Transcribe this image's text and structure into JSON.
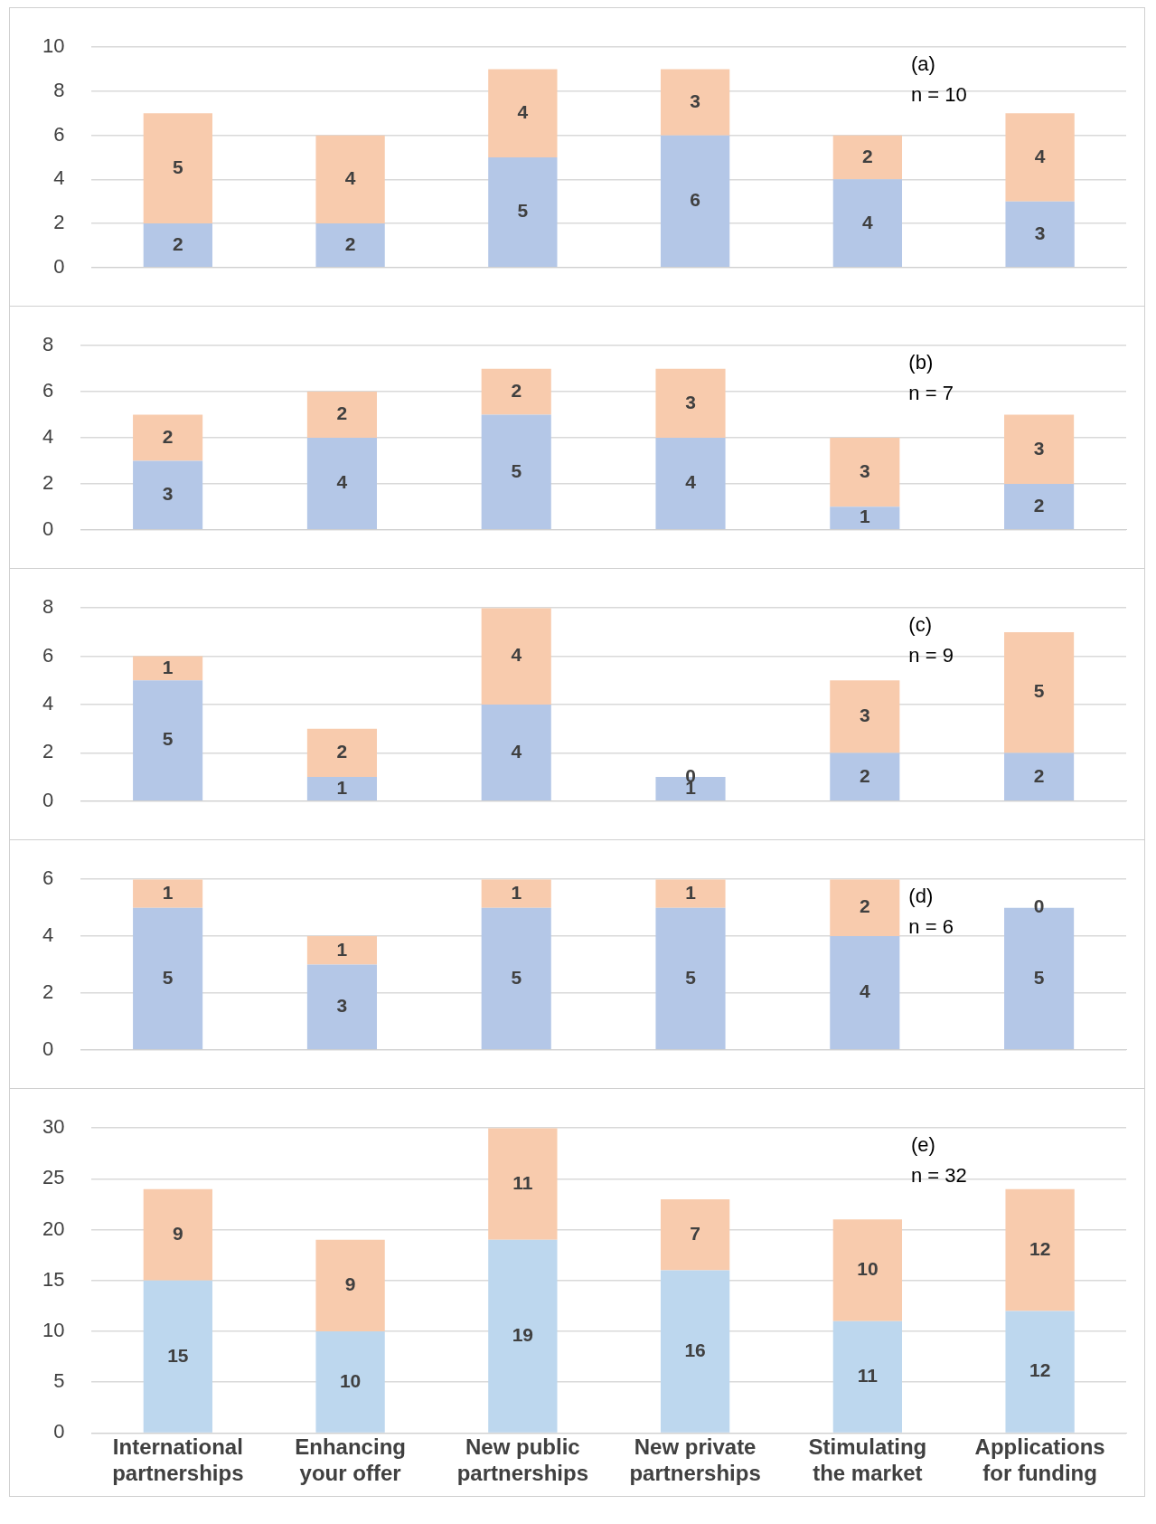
{
  "chart_data": [
    {
      "type": "bar",
      "stacked": true,
      "categories": [
        null,
        null,
        null,
        null,
        null,
        null
      ],
      "tick_labels": "y",
      "grid": "y",
      "data_labels": true,
      "ylim": [
        0,
        10
      ],
      "yticks": [
        0,
        2,
        4,
        6,
        8,
        10
      ],
      "annotations": [
        "(a)",
        "n = 10"
      ],
      "series": [
        {
          "color": "#b4c7e7",
          "values": [
            2,
            2,
            5,
            6,
            4,
            3
          ]
        },
        {
          "color": "#f8cbad",
          "values": [
            5,
            4,
            4,
            3,
            2,
            4
          ]
        }
      ]
    },
    {
      "type": "bar",
      "stacked": true,
      "categories": [
        null,
        null,
        null,
        null,
        null,
        null
      ],
      "tick_labels": "y",
      "grid": "y",
      "data_labels": true,
      "ylim": [
        0,
        8
      ],
      "yticks": [
        0,
        2,
        4,
        6,
        8
      ],
      "annotations": [
        "(b)",
        "n = 7"
      ],
      "series": [
        {
          "color": "#b4c7e7",
          "values": [
            3,
            4,
            5,
            4,
            1,
            2
          ]
        },
        {
          "color": "#f8cbad",
          "values": [
            2,
            2,
            2,
            3,
            3,
            3
          ]
        }
      ]
    },
    {
      "type": "bar",
      "stacked": true,
      "categories": [
        null,
        null,
        null,
        null,
        null,
        null
      ],
      "tick_labels": "y",
      "grid": "y",
      "data_labels": true,
      "ylim": [
        0,
        8
      ],
      "yticks": [
        0,
        2,
        4,
        6,
        8
      ],
      "annotations": [
        "(c)",
        "n = 9"
      ],
      "series": [
        {
          "color": "#b4c7e7",
          "values": [
            5,
            1,
            4,
            1,
            2,
            2
          ]
        },
        {
          "color": "#f8cbad",
          "values": [
            1,
            2,
            4,
            0,
            3,
            5
          ]
        }
      ]
    },
    {
      "type": "bar",
      "stacked": true,
      "categories": [
        null,
        null,
        null,
        null,
        null,
        null
      ],
      "tick_labels": "y",
      "grid": "y",
      "data_labels": true,
      "ylim": [
        0,
        6
      ],
      "yticks": [
        0,
        2,
        4,
        6
      ],
      "annotations": [
        "(d)",
        "n = 6"
      ],
      "series": [
        {
          "color": "#b4c7e7",
          "values": [
            5,
            3,
            5,
            5,
            4,
            5
          ]
        },
        {
          "color": "#f8cbad",
          "values": [
            1,
            1,
            1,
            1,
            2,
            0
          ]
        }
      ]
    },
    {
      "type": "bar",
      "stacked": true,
      "categories": [
        "International partnerships",
        "Enhancing your offer",
        "New public partnerships",
        "New private partnerships",
        "Stimulating the market",
        "Applications for funding"
      ],
      "grid": "y",
      "data_labels": true,
      "ylim": [
        0,
        30
      ],
      "yticks": [
        0,
        5,
        10,
        15,
        20,
        25,
        30
      ],
      "annotations": [
        "(e)",
        "n = 32"
      ],
      "series": [
        {
          "color": "#bdd7ee",
          "values": [
            15,
            10,
            19,
            16,
            11,
            12
          ]
        },
        {
          "color": "#f8cbad",
          "values": [
            9,
            9,
            11,
            7,
            10,
            12
          ]
        }
      ]
    }
  ]
}
